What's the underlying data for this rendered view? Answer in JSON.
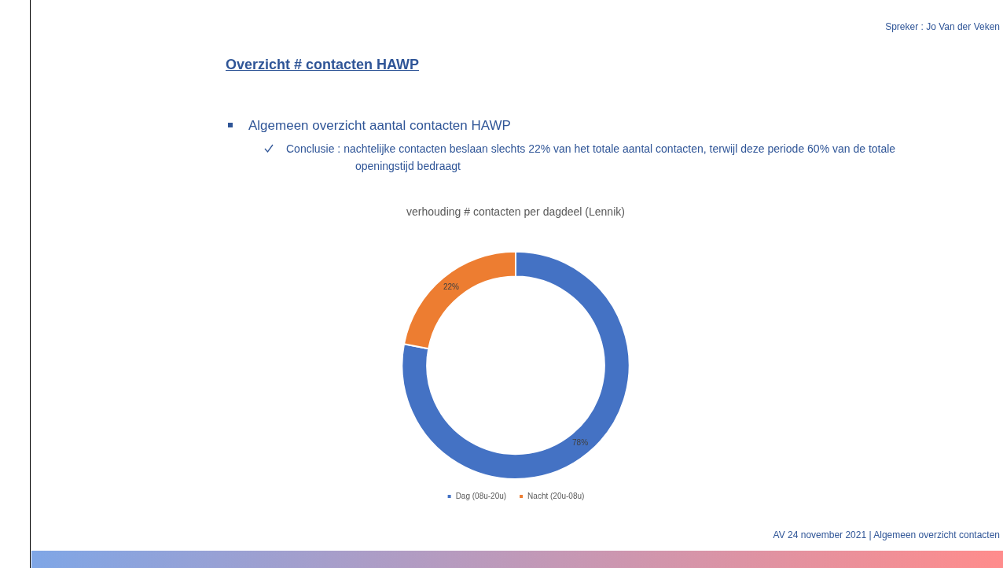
{
  "chart_data": {
    "type": "donut",
    "title": "verhouding # contacten per dagdeel (Lennik)",
    "categories": [
      "Dag (08u-20u)",
      "Nacht (20u-08u)"
    ],
    "values": [
      78,
      22
    ],
    "colors": [
      "#4472c4",
      "#ed7d31"
    ],
    "value_labels": [
      "78%",
      "22%"
    ],
    "legend": "bottom",
    "annotations": [
      "Spreker : Jo Van der Veken",
      "Overzicht # contacten HAWP",
      "Algemeen overzicht aantal contacten HAWP",
      "Conclusie : nachtelijke contacten beslaan slechts 22% van het totale aantal contacten, terwijl deze periode 60% van de totale openingstijd bedraagt",
      "AV 24 november 2021 | Algemeen overzicht contacten"
    ]
  }
}
